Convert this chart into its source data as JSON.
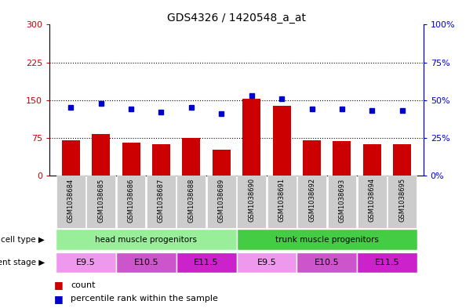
{
  "title": "GDS4326 / 1420548_a_at",
  "samples": [
    "GSM1038684",
    "GSM1038685",
    "GSM1038686",
    "GSM1038687",
    "GSM1038688",
    "GSM1038689",
    "GSM1038690",
    "GSM1038691",
    "GSM1038692",
    "GSM1038693",
    "GSM1038694",
    "GSM1038695"
  ],
  "counts": [
    70,
    82,
    65,
    63,
    75,
    52,
    153,
    138,
    70,
    68,
    63,
    63
  ],
  "percentiles": [
    45,
    48,
    44,
    42,
    45,
    41,
    53,
    51,
    44,
    44,
    43,
    43
  ],
  "left_ylim": [
    0,
    300
  ],
  "right_ylim": [
    0,
    100
  ],
  "left_yticks": [
    0,
    75,
    150,
    225,
    300
  ],
  "right_yticks": [
    0,
    25,
    50,
    75,
    100
  ],
  "left_yticklabels": [
    "0",
    "75",
    "150",
    "225",
    "300"
  ],
  "right_yticklabels": [
    "0%",
    "25%",
    "50%",
    "75%",
    "100%"
  ],
  "bar_color": "#cc0000",
  "marker_color": "#0000cc",
  "gridline_color": "#000000",
  "cell_type_groups": [
    {
      "label": "head muscle progenitors",
      "start": 0,
      "end": 6,
      "color": "#99ee99"
    },
    {
      "label": "trunk muscle progenitors",
      "start": 6,
      "end": 12,
      "color": "#44cc44"
    }
  ],
  "dev_stage_groups": [
    {
      "label": "E9.5",
      "start": 0,
      "end": 2,
      "color": "#ee99ee"
    },
    {
      "label": "E10.5",
      "start": 2,
      "end": 4,
      "color": "#cc55cc"
    },
    {
      "label": "E11.5",
      "start": 4,
      "end": 6,
      "color": "#cc22cc"
    },
    {
      "label": "E9.5",
      "start": 6,
      "end": 8,
      "color": "#ee99ee"
    },
    {
      "label": "E10.5",
      "start": 8,
      "end": 10,
      "color": "#cc55cc"
    },
    {
      "label": "E11.5",
      "start": 10,
      "end": 12,
      "color": "#cc22cc"
    }
  ],
  "legend_bar_label": "count",
  "legend_marker_label": "percentile rank within the sample",
  "left_axis_color": "#cc0000",
  "right_axis_color": "#0000cc",
  "tick_bg_color": "#cccccc",
  "plot_bg_color": "#ffffff"
}
